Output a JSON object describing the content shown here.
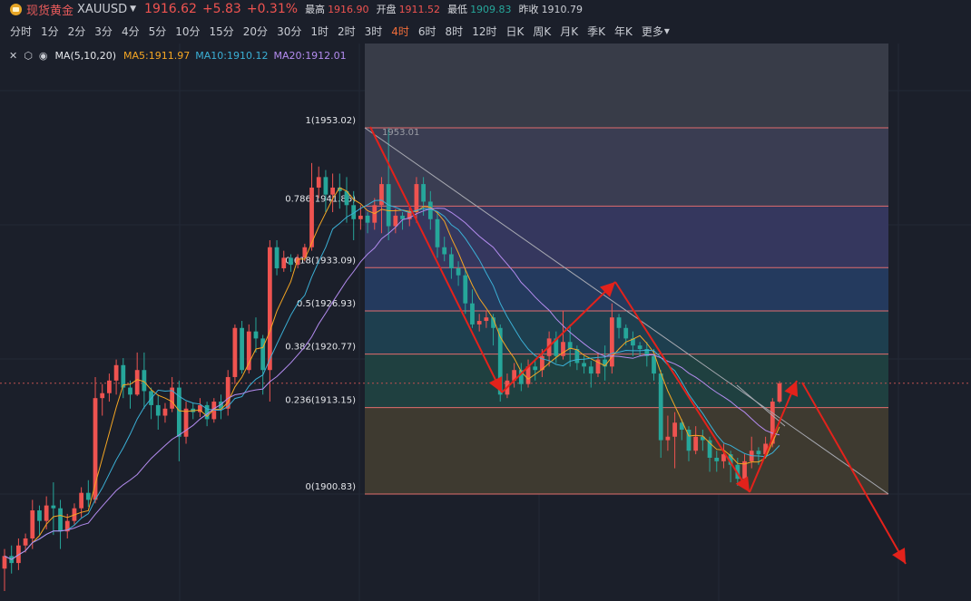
{
  "header": {
    "instrument_name": "现货黄金",
    "symbol": "XAUUSD",
    "price": "1916.62",
    "change": "+5.83",
    "change_pct": "+0.31%",
    "stats": [
      {
        "label": "最高",
        "value": "1916.90",
        "color": "#ef5350"
      },
      {
        "label": "开盘",
        "value": "1911.52",
        "color": "#ef5350"
      },
      {
        "label": "最低",
        "value": "1909.83",
        "color": "#26a69a"
      },
      {
        "label": "昨收",
        "value": "1910.79",
        "color": "#c9ccd3"
      }
    ]
  },
  "periods": [
    "分时",
    "1分",
    "2分",
    "3分",
    "4分",
    "5分",
    "10分",
    "15分",
    "20分",
    "30分",
    "1时",
    "2时",
    "3时",
    "4时",
    "6时",
    "8时",
    "12时",
    "日K",
    "周K",
    "月K",
    "季K",
    "年K",
    "更多"
  ],
  "active_period": "4时",
  "ma": {
    "label": "MA(5,10,20)",
    "ma5": "MA5:1911.97",
    "ma10": "MA10:1910.12",
    "ma20": "MA20:1912.01",
    "colors": {
      "ma5": "#f5a623",
      "ma10": "#3bb0d6",
      "ma20": "#b48cf0"
    }
  },
  "chart_data": {
    "type": "candlestick",
    "y_range": [
      1890,
      1963
    ],
    "fib_levels": [
      {
        "ratio": "1",
        "price": 1953.02,
        "label": "1(1953.02)",
        "fill": "#3a3d52"
      },
      {
        "ratio": "0.786",
        "price": 1941.86,
        "label": "0.786(1941.86)",
        "fill": "#35375e"
      },
      {
        "ratio": "0.618",
        "price": 1933.09,
        "label": "0.618(1933.09)",
        "fill": "#243a5e"
      },
      {
        "ratio": "0.5",
        "price": 1926.93,
        "label": "0.5(1926.93)",
        "fill": "#1e3f4f"
      },
      {
        "ratio": "0.382",
        "price": 1920.77,
        "label": "0.382(1920.77)",
        "fill": "#1f4040"
      },
      {
        "ratio": "0.236",
        "price": 1913.15,
        "label": "0.236(1913.15)",
        "fill": "#3e3a30"
      },
      {
        "ratio": "0",
        "price": 1900.83,
        "label": "0(1900.83)",
        "fill": "#3c3232"
      }
    ],
    "high_marker": "1953.01",
    "current_price_line": 1916.62,
    "candles": [
      [
        1890.2,
        1892.0,
        1887.0,
        1893.0
      ],
      [
        1892.0,
        1891.0,
        1889.5,
        1893.5
      ],
      [
        1891.0,
        1893.5,
        1890.0,
        1894.5
      ],
      [
        1893.5,
        1894.5,
        1892.5,
        1895.2
      ],
      [
        1894.5,
        1898.5,
        1893.0,
        1900.0
      ],
      [
        1898.5,
        1897.0,
        1895.0,
        1899.2
      ],
      [
        1897.0,
        1899.2,
        1895.8,
        1900.5
      ],
      [
        1899.2,
        1898.8,
        1895.0,
        1902.5
      ],
      [
        1898.8,
        1895.5,
        1893.0,
        1900.0
      ],
      [
        1895.5,
        1897.0,
        1894.5,
        1898.0
      ],
      [
        1897.0,
        1898.8,
        1896.5,
        1899.5
      ],
      [
        1898.8,
        1901.0,
        1897.5,
        1901.8
      ],
      [
        1901.0,
        1900.0,
        1899.0,
        1902.8
      ],
      [
        1900.0,
        1914.5,
        1899.5,
        1917.5
      ],
      [
        1914.5,
        1915.2,
        1912.0,
        1916.5
      ],
      [
        1915.2,
        1917.0,
        1914.0,
        1918.0
      ],
      [
        1917.0,
        1919.2,
        1915.0,
        1920.0
      ],
      [
        1919.2,
        1916.0,
        1914.5,
        1920.2
      ],
      [
        1916.0,
        1915.0,
        1913.0,
        1917.0
      ],
      [
        1915.0,
        1918.5,
        1914.8,
        1921.0
      ],
      [
        1918.5,
        1915.5,
        1913.0,
        1921.0
      ],
      [
        1915.5,
        1913.5,
        1911.5,
        1916.0
      ],
      [
        1913.5,
        1912.0,
        1910.0,
        1915.0
      ],
      [
        1912.0,
        1913.0,
        1911.0,
        1913.8
      ],
      [
        1913.0,
        1916.0,
        1912.5,
        1917.5
      ],
      [
        1916.0,
        1909.0,
        1905.5,
        1917.0
      ],
      [
        1909.0,
        1913.0,
        1908.0,
        1914.0
      ],
      [
        1913.0,
        1912.5,
        1911.5,
        1913.8
      ],
      [
        1912.5,
        1913.5,
        1911.8,
        1914.5
      ],
      [
        1913.5,
        1911.5,
        1910.5,
        1914.0
      ],
      [
        1911.5,
        1914.0,
        1911.0,
        1914.5
      ],
      [
        1914.0,
        1913.0,
        1911.5,
        1915.0
      ],
      [
        1913.0,
        1917.5,
        1912.0,
        1918.5
      ],
      [
        1917.5,
        1924.5,
        1916.5,
        1925.0
      ],
      [
        1924.5,
        1918.5,
        1918.0,
        1925.5
      ],
      [
        1918.5,
        1924.0,
        1918.0,
        1925.0
      ],
      [
        1924.0,
        1923.0,
        1921.0,
        1926.0
      ],
      [
        1923.0,
        1918.5,
        1915.0,
        1923.5
      ],
      [
        1918.5,
        1936.0,
        1914.0,
        1937.0
      ],
      [
        1936.0,
        1933.0,
        1932.0,
        1937.0
      ],
      [
        1933.0,
        1934.5,
        1932.5,
        1935.5
      ],
      [
        1934.5,
        1933.5,
        1932.5,
        1935.0
      ],
      [
        1933.5,
        1934.5,
        1933.0,
        1935.0
      ],
      [
        1934.5,
        1936.0,
        1934.0,
        1936.5
      ],
      [
        1936.0,
        1944.5,
        1935.5,
        1948.0
      ],
      [
        1944.5,
        1946.0,
        1943.0,
        1947.5
      ],
      [
        1946.0,
        1943.5,
        1941.0,
        1947.0
      ],
      [
        1943.5,
        1944.5,
        1941.0,
        1946.5
      ],
      [
        1944.5,
        1944.0,
        1941.5,
        1946.5
      ],
      [
        1944.0,
        1942.0,
        1939.5,
        1946.0
      ],
      [
        1942.0,
        1940.0,
        1937.0,
        1944.0
      ],
      [
        1940.0,
        1940.5,
        1938.5,
        1942.0
      ],
      [
        1940.5,
        1939.5,
        1938.0,
        1941.0
      ],
      [
        1939.5,
        1942.0,
        1938.5,
        1943.0
      ],
      [
        1942.0,
        1945.0,
        1938.0,
        1946.0
      ],
      [
        1945.0,
        1939.0,
        1937.0,
        1953.0
      ],
      [
        1939.0,
        1940.5,
        1938.0,
        1941.5
      ],
      [
        1940.5,
        1940.0,
        1938.5,
        1941.0
      ],
      [
        1940.0,
        1941.0,
        1939.0,
        1941.8
      ],
      [
        1941.0,
        1945.0,
        1939.5,
        1946.0
      ],
      [
        1945.0,
        1942.5,
        1940.5,
        1946.0
      ],
      [
        1942.5,
        1940.0,
        1938.5,
        1944.0
      ],
      [
        1940.0,
        1936.0,
        1934.5,
        1941.0
      ],
      [
        1936.0,
        1935.0,
        1934.0,
        1937.5
      ],
      [
        1935.0,
        1933.0,
        1931.5,
        1936.0
      ],
      [
        1933.0,
        1932.0,
        1930.5,
        1934.0
      ],
      [
        1932.0,
        1928.0,
        1926.5,
        1933.0
      ],
      [
        1928.0,
        1925.0,
        1924.5,
        1930.0
      ],
      [
        1925.0,
        1925.5,
        1924.0,
        1926.5
      ],
      [
        1925.5,
        1926.0,
        1924.5,
        1927.0
      ],
      [
        1926.0,
        1924.5,
        1922.0,
        1926.5
      ],
      [
        1924.5,
        1915.0,
        1914.0,
        1925.0
      ],
      [
        1915.0,
        1917.0,
        1914.5,
        1918.0
      ],
      [
        1917.0,
        1918.5,
        1916.0,
        1919.5
      ],
      [
        1918.5,
        1916.5,
        1915.5,
        1919.5
      ],
      [
        1916.5,
        1919.0,
        1916.0,
        1920.0
      ],
      [
        1919.0,
        1918.5,
        1917.0,
        1920.0
      ],
      [
        1918.5,
        1920.5,
        1917.5,
        1921.5
      ],
      [
        1920.5,
        1923.0,
        1919.0,
        1924.0
      ],
      [
        1923.0,
        1920.5,
        1919.5,
        1924.0
      ],
      [
        1920.5,
        1922.5,
        1920.0,
        1927.0
      ],
      [
        1922.5,
        1921.5,
        1919.0,
        1925.0
      ],
      [
        1921.5,
        1919.5,
        1918.5,
        1922.0
      ],
      [
        1919.5,
        1919.0,
        1918.0,
        1920.5
      ],
      [
        1919.0,
        1918.0,
        1916.0,
        1919.8
      ],
      [
        1918.0,
        1920.0,
        1917.5,
        1921.0
      ],
      [
        1920.0,
        1919.0,
        1917.0,
        1922.0
      ],
      [
        1919.0,
        1926.0,
        1918.0,
        1928.0
      ],
      [
        1926.0,
        1924.5,
        1923.0,
        1926.5
      ],
      [
        1924.5,
        1923.0,
        1922.0,
        1925.0
      ],
      [
        1923.0,
        1922.0,
        1920.5,
        1924.0
      ],
      [
        1922.0,
        1921.5,
        1920.5,
        1922.5
      ],
      [
        1921.5,
        1920.5,
        1919.0,
        1922.5
      ],
      [
        1920.5,
        1918.0,
        1917.0,
        1921.5
      ],
      [
        1918.0,
        1908.5,
        1906.0,
        1918.5
      ],
      [
        1908.5,
        1909.0,
        1907.0,
        1912.0
      ],
      [
        1909.0,
        1911.0,
        1904.5,
        1912.5
      ],
      [
        1911.0,
        1910.0,
        1908.5,
        1911.5
      ],
      [
        1910.0,
        1907.0,
        1905.5,
        1910.5
      ],
      [
        1907.0,
        1909.0,
        1906.5,
        1910.5
      ],
      [
        1909.0,
        1908.5,
        1907.0,
        1910.0
      ],
      [
        1908.5,
        1906.0,
        1904.0,
        1909.0
      ],
      [
        1906.0,
        1905.5,
        1904.0,
        1907.0
      ],
      [
        1905.5,
        1906.5,
        1904.5,
        1908.0
      ],
      [
        1906.5,
        1905.0,
        1902.5,
        1907.0
      ],
      [
        1905.0,
        1903.0,
        1902.0,
        1906.0
      ],
      [
        1903.0,
        1905.5,
        1902.5,
        1906.5
      ],
      [
        1905.5,
        1907.0,
        1904.5,
        1909.0
      ],
      [
        1907.0,
        1906.5,
        1905.0,
        1907.5
      ],
      [
        1906.5,
        1908.0,
        1906.0,
        1909.0
      ],
      [
        1908.0,
        1914.0,
        1907.5,
        1914.5
      ],
      [
        1914.0,
        1916.6,
        1913.8,
        1916.9
      ]
    ]
  }
}
